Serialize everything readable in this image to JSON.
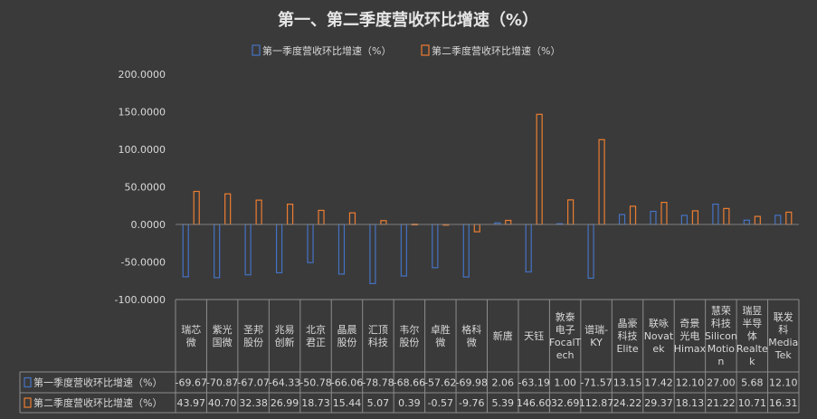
{
  "chart_data": {
    "type": "bar",
    "title": "第一、第二季度营收环比增速（%）",
    "categories": [
      [
        "瑞芯",
        "微"
      ],
      [
        "紫光",
        "国微"
      ],
      [
        "圣邦",
        "股份"
      ],
      [
        "兆易",
        "创新"
      ],
      [
        "北京",
        "君正"
      ],
      [
        "晶晨",
        "股份"
      ],
      [
        "汇顶",
        "科技"
      ],
      [
        "韦尔",
        "股份"
      ],
      [
        "卓胜",
        "微"
      ],
      [
        "格科",
        "微"
      ],
      [
        "新唐"
      ],
      [
        "天钰"
      ],
      [
        "敦泰",
        "电子",
        "FocalT",
        "ech"
      ],
      [
        "谱瑞-",
        "KY"
      ],
      [
        "晶豪",
        "科技",
        "Elite"
      ],
      [
        "联咏",
        "Novat",
        "ek"
      ],
      [
        "奇景",
        "光电",
        "Himax"
      ],
      [
        "慧荣",
        "科技",
        "Silicon",
        "Motio",
        "n"
      ],
      [
        "瑞昱",
        "半导",
        "体",
        "Realte",
        "k"
      ],
      [
        "联发",
        "科",
        "Media",
        "Tek"
      ]
    ],
    "series": [
      {
        "name": "第一季度营收环比增速（%）",
        "color": "#4472c4",
        "values": [
          -69.67,
          -70.87,
          -67.07,
          -64.33,
          -50.78,
          -66.06,
          -78.78,
          -68.66,
          -57.62,
          -69.98,
          2.06,
          -63.19,
          1.0,
          -71.57,
          13.15,
          17.42,
          12.1,
          27.0,
          5.68,
          12.1
        ],
        "labels": [
          "-69.67",
          "-70.87",
          "-67.07",
          "-64.33",
          "-50.78",
          "-66.06",
          "-78.78",
          "-68.66",
          "-57.62",
          "-69.98",
          "2.06",
          "-63.19",
          "1.00",
          "-71.57",
          "13.15",
          "17.42",
          "12.10",
          "27.00",
          "5.68",
          "12.10"
        ]
      },
      {
        "name": "第二季度营收环比增速（%）",
        "color": "#ed7d31",
        "values": [
          43.97,
          40.7,
          32.38,
          26.99,
          18.73,
          15.44,
          5.07,
          0.39,
          -0.57,
          -9.76,
          5.39,
          146.6,
          32.69,
          112.87,
          24.22,
          29.37,
          18.13,
          21.22,
          10.71,
          16.31
        ],
        "labels": [
          "43.97",
          "40.70",
          "32.38",
          "26.99",
          "18.73",
          "15.44",
          "5.07",
          "0.39",
          "-0.57",
          "-9.76",
          "5.39",
          "146.60",
          "32.69",
          "112.87",
          "24.22",
          "29.37",
          "18.13",
          "21.22",
          "10.71",
          "16.31"
        ]
      }
    ],
    "ylim": [
      -100,
      200
    ],
    "yticks": [
      "200.0000",
      "150.0000",
      "100.0000",
      "50.0000",
      "0.0000",
      "-50.0000",
      "-100.0000"
    ],
    "ytick_values": [
      200,
      150,
      100,
      50,
      0,
      -50,
      -100
    ],
    "legend_position": "top-center",
    "data_table": true,
    "grid": false
  }
}
